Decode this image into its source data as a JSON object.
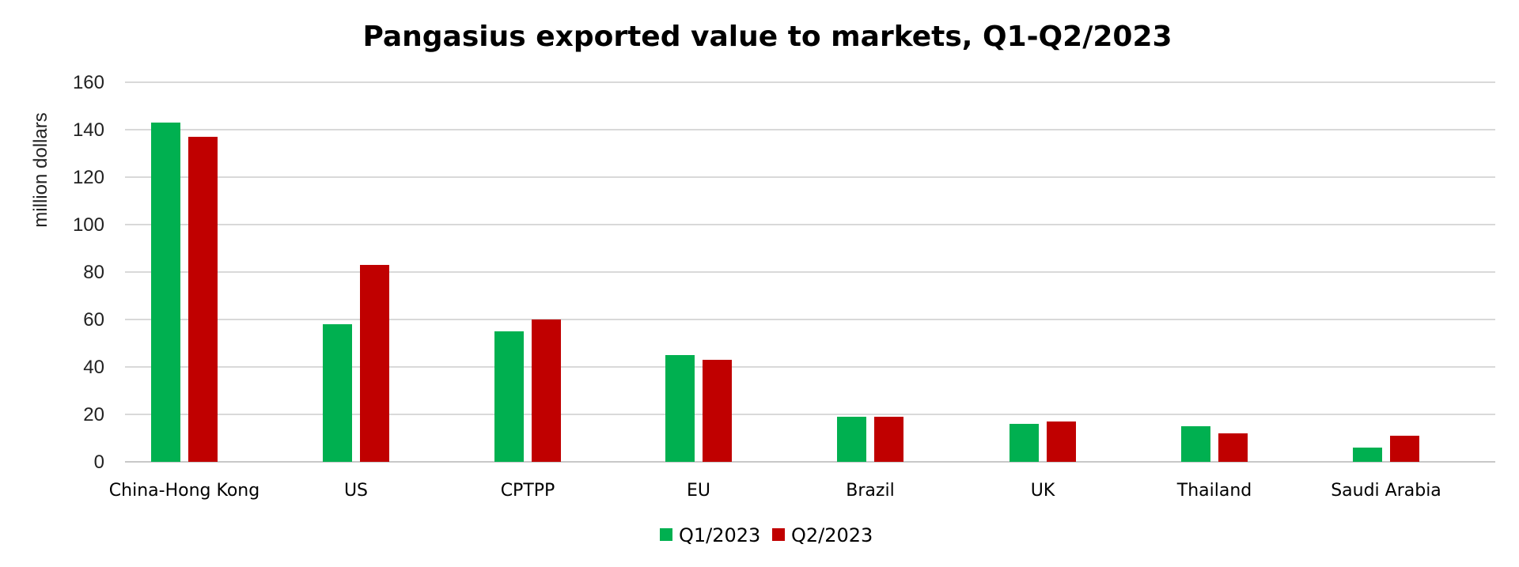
{
  "chart_data": {
    "type": "bar",
    "title": "Pangasius exported value to markets, Q1-Q2/2023",
    "xlabel": "",
    "ylabel": "million dollars",
    "ylim": [
      0,
      160
    ],
    "yticks": [
      0,
      20,
      40,
      60,
      80,
      100,
      120,
      140,
      160
    ],
    "grid": true,
    "legend_position": "bottom",
    "categories": [
      "China-Hong Kong",
      "US",
      "CPTPP",
      "EU",
      "Brazil",
      "UK",
      "Thailand",
      "Saudi Arabia"
    ],
    "series": [
      {
        "name": "Q1/2023",
        "color": "#00b050",
        "values": [
          143,
          58,
          55,
          45,
          19,
          16,
          15,
          6
        ]
      },
      {
        "name": "Q2/2023",
        "color": "#c00000",
        "values": [
          137,
          83,
          60,
          43,
          19,
          17,
          12,
          11
        ]
      }
    ]
  }
}
